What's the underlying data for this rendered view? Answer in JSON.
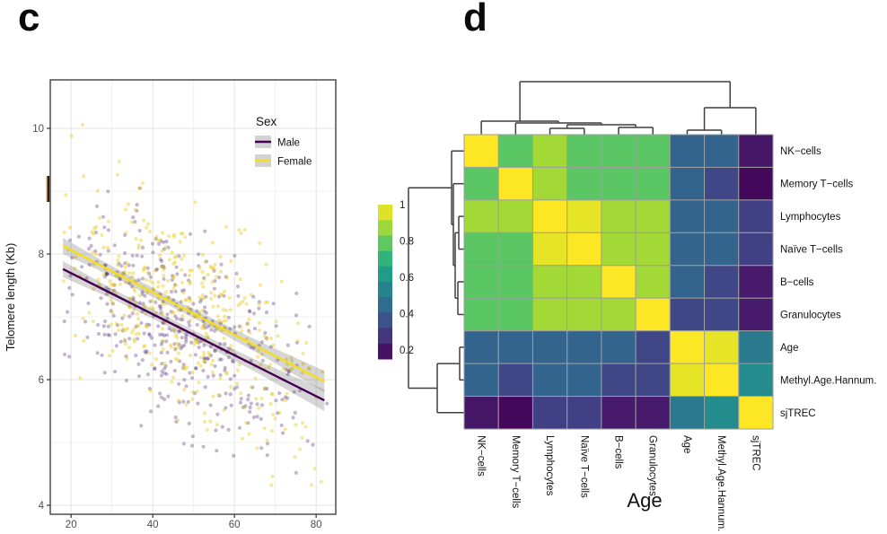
{
  "panels": {
    "c_label": "c",
    "d_label": "d"
  },
  "chart_data": [
    {
      "id": "panel-c",
      "type": "scatter",
      "ylabel": "Telomere length (Kb)",
      "xlabel": "",
      "x_ticks": [
        20,
        40,
        60,
        80
      ],
      "x_minor": [
        30,
        50,
        70
      ],
      "y_ticks": [
        4,
        6,
        8,
        10
      ],
      "y_minor": [
        5,
        7,
        9
      ],
      "xlim": [
        14.9,
        84.8
      ],
      "ylim": [
        3.86,
        10.77
      ],
      "legend": {
        "title": "Sex",
        "entries": [
          {
            "label": "Male",
            "color": "#440154"
          },
          {
            "label": "Female",
            "color": "#F5DE1B"
          }
        ]
      },
      "series": [
        {
          "name": "Male",
          "line_x": [
            18,
            82
          ],
          "line_y": [
            7.76,
            5.67
          ],
          "line_color": "#440154",
          "point_color": "rgba(72,32,106,0.33)",
          "n_points": 420,
          "seed": 7
        },
        {
          "name": "Female",
          "line_x": [
            18,
            82
          ],
          "line_y": [
            8.13,
            5.97
          ],
          "line_color": "#F5DE1B",
          "point_color": "rgba(232,198,16,0.42)",
          "n_points": 430,
          "seed": 13
        }
      ],
      "ci_band": {
        "x": [
          18,
          30,
          50,
          66,
          82
        ],
        "halfwidth": [
          0.13,
          0.08,
          0.07,
          0.1,
          0.17
        ],
        "color": "rgba(70,70,70,0.22)"
      },
      "x_center": 47,
      "x_spread": 15,
      "y_noise_sd": 0.75
    },
    {
      "id": "panel-d",
      "type": "heatmap",
      "xlabel": "Age",
      "labels": [
        "NK−cells",
        "Memory T−cells",
        "Lymphocytes",
        "Naïve T−cells",
        "B−cells",
        "Granulocytes",
        "Age",
        "Methyl.Age.Hannum.",
        "sjTREC"
      ],
      "values": [
        [
          1.0,
          0.78,
          0.88,
          0.78,
          0.78,
          0.78,
          0.42,
          0.42,
          0.2
        ],
        [
          0.78,
          1.0,
          0.88,
          0.78,
          0.78,
          0.78,
          0.42,
          0.33,
          0.17
        ],
        [
          0.88,
          0.88,
          1.0,
          0.97,
          0.88,
          0.88,
          0.42,
          0.42,
          0.31
        ],
        [
          0.78,
          0.78,
          0.97,
          1.0,
          0.88,
          0.88,
          0.42,
          0.42,
          0.31
        ],
        [
          0.78,
          0.78,
          0.88,
          0.88,
          1.0,
          0.88,
          0.42,
          0.33,
          0.21
        ],
        [
          0.78,
          0.78,
          0.88,
          0.88,
          0.88,
          1.0,
          0.33,
          0.33,
          0.21
        ],
        [
          0.42,
          0.42,
          0.42,
          0.42,
          0.42,
          0.33,
          1.0,
          0.97,
          0.5
        ],
        [
          0.42,
          0.33,
          0.42,
          0.42,
          0.33,
          0.33,
          0.97,
          1.0,
          0.56
        ],
        [
          0.2,
          0.17,
          0.31,
          0.31,
          0.21,
          0.21,
          0.5,
          0.56,
          1.0
        ]
      ],
      "colorbar": {
        "tick_labels": [
          "1",
          "0.8",
          "0.6",
          "0.4",
          "0.2"
        ],
        "tick_values": [
          1,
          0.8,
          0.6,
          0.4,
          0.2
        ],
        "domain": [
          0.15,
          1.0
        ],
        "n_blocks": 10
      },
      "viridis": [
        "#440154",
        "#482878",
        "#3E4A89",
        "#31688E",
        "#26828E",
        "#1F9E89",
        "#35B779",
        "#6DCD59",
        "#B5DE2B",
        "#FDE725"
      ],
      "col_dendrogram": [
        59,
        [
          15,
          0,
          [
            13,
            1,
            [
              11,
              [
                7,
                2,
                3
              ],
              [
                8,
                4,
                5
              ]
            ]
          ]
        ],
        [
          30,
          [
            5,
            6,
            7
          ],
          8
        ]
      ],
      "row_dendrogram": [
        62,
        [
          14,
          0,
          [
            12,
            1,
            [
              10,
              [
                6,
                2,
                3
              ],
              [
                7,
                4,
                5
              ]
            ]
          ]
        ],
        [
          30,
          [
            5,
            6,
            7
          ],
          8
        ]
      ]
    }
  ]
}
